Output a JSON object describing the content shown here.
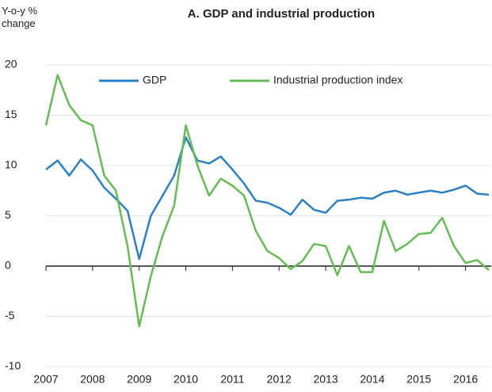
{
  "chart_data": {
    "type": "line",
    "title": "A. GDP and industrial production",
    "ylabel": "Y-o-y % change",
    "x": [
      2007,
      2007.25,
      2007.5,
      2007.75,
      2008,
      2008.25,
      2008.5,
      2008.75,
      2009,
      2009.25,
      2009.5,
      2009.75,
      2010,
      2010.25,
      2010.5,
      2010.75,
      2011,
      2011.25,
      2011.5,
      2011.75,
      2012,
      2012.25,
      2012.5,
      2012.75,
      2013,
      2013.25,
      2013.5,
      2013.75,
      2014,
      2014.25,
      2014.5,
      2014.75,
      2015,
      2015.25,
      2015.5,
      2015.75,
      2016,
      2016.25,
      2016.5
    ],
    "series": [
      {
        "name": "GDP",
        "color": "#2b80c3",
        "values": [
          9.6,
          10.5,
          9.0,
          10.6,
          9.5,
          7.8,
          6.7,
          5.5,
          0.7,
          5.0,
          7.0,
          9.0,
          12.8,
          10.5,
          10.2,
          10.9,
          9.6,
          8.2,
          6.5,
          6.3,
          5.8,
          5.1,
          6.6,
          5.6,
          5.3,
          6.5,
          6.6,
          6.8,
          6.7,
          7.3,
          7.5,
          7.1,
          7.3,
          7.5,
          7.3,
          7.6,
          8.0,
          7.2,
          7.1
        ]
      },
      {
        "name": "Industrial production index",
        "color": "#66bb55",
        "values": [
          14,
          19,
          16,
          14.5,
          14,
          9,
          7.5,
          2,
          -6,
          -1,
          3,
          6,
          14,
          10,
          7,
          8.7,
          8,
          7,
          3.5,
          1.5,
          0.8,
          -0.3,
          0.5,
          2.2,
          2.0,
          -0.9,
          2.0,
          -0.6,
          -0.6,
          4.5,
          1.5,
          2.2,
          3.2,
          3.3,
          4.8,
          2.0,
          0.3,
          0.6,
          -0.4
        ]
      }
    ],
    "xlim": [
      2007,
      2016.55
    ],
    "xticks": [
      2007,
      2008,
      2009,
      2010,
      2011,
      2012,
      2013,
      2014,
      2015,
      2016
    ],
    "ylim": [
      -10,
      20
    ],
    "yticks": [
      -10,
      -5,
      0,
      5,
      10,
      15,
      20
    ],
    "grid": true,
    "legend": "top"
  }
}
